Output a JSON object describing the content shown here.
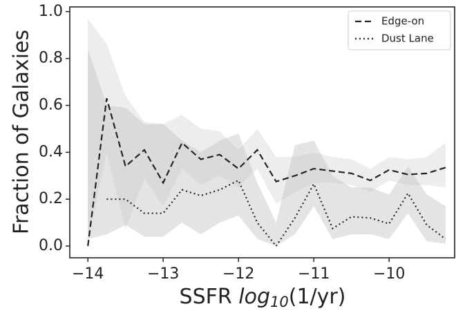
{
  "chart_data": {
    "type": "line",
    "xlabel": [
      "SSFR ",
      "log",
      "10",
      "(1/yr)"
    ],
    "ylabel": "Fraction of Galaxies",
    "x": [
      -14,
      -13.75,
      -13.5,
      -13.25,
      -13,
      -12.75,
      -12.5,
      -12.25,
      -12,
      -11.75,
      -11.5,
      -11.25,
      -11,
      -10.75,
      -10.5,
      -10.25,
      -10,
      -9.75,
      -9.5,
      -9.25
    ],
    "series": [
      {
        "name": "Edge-on",
        "color": "#222222",
        "linestyle": "dashed",
        "band_color": "#d8d8dc",
        "values": [
          0.0,
          0.63,
          0.34,
          0.41,
          0.27,
          0.44,
          0.37,
          0.39,
          0.33,
          0.41,
          0.275,
          0.3,
          0.33,
          0.32,
          0.31,
          0.28,
          0.325,
          0.305,
          0.31,
          0.335
        ],
        "upper": [
          0.97,
          0.86,
          0.64,
          0.53,
          0.52,
          0.56,
          0.5,
          0.49,
          0.41,
          0.5,
          0.38,
          0.38,
          0.4,
          0.38,
          0.37,
          0.33,
          0.38,
          0.37,
          0.38,
          0.44
        ],
        "lower": [
          0.02,
          0.4,
          0.07,
          0.29,
          0.17,
          0.33,
          0.26,
          0.3,
          0.25,
          0.33,
          0.18,
          0.23,
          0.27,
          0.27,
          0.26,
          0.23,
          0.28,
          0.26,
          0.26,
          0.25
        ]
      },
      {
        "name": "Dust Lane",
        "color": "#222222",
        "linestyle": "dotted",
        "band_color": "#c4c4c8",
        "values": [
          null,
          0.2,
          0.2,
          0.14,
          0.14,
          0.24,
          0.215,
          0.24,
          0.28,
          0.1,
          0.0,
          0.12,
          0.265,
          0.075,
          0.125,
          0.12,
          0.095,
          0.225,
          0.09,
          0.03
        ],
        "upper": [
          0.84,
          0.6,
          0.59,
          0.52,
          0.52,
          0.45,
          0.4,
          0.45,
          0.48,
          0.27,
          0.1,
          0.43,
          0.45,
          0.3,
          0.25,
          0.25,
          0.22,
          0.34,
          0.22,
          0.17
        ],
        "lower": [
          0.03,
          0.05,
          0.09,
          0.04,
          0.04,
          0.1,
          0.05,
          0.1,
          0.13,
          0.03,
          0.0,
          0.05,
          0.17,
          0.03,
          0.05,
          0.05,
          0.03,
          0.14,
          0.02,
          0.01
        ]
      }
    ],
    "xlim": [
      -14.24,
      -9.13
    ],
    "ylim": [
      -0.05,
      1.02
    ],
    "xticks": [
      {
        "value": -14,
        "label": "−14"
      },
      {
        "value": -13,
        "label": "−13"
      },
      {
        "value": -12,
        "label": "−12"
      },
      {
        "value": -11,
        "label": "−11"
      },
      {
        "value": -10,
        "label": "−10"
      }
    ],
    "yticks": [
      {
        "value": 0,
        "label": "0.0"
      },
      {
        "value": 0.2,
        "label": "0.2"
      },
      {
        "value": 0.4,
        "label": "0.4"
      },
      {
        "value": 0.6,
        "label": "0.6"
      },
      {
        "value": 0.8,
        "label": "0.8"
      },
      {
        "value": 1,
        "label": "1.0"
      }
    ],
    "legend": "upper right"
  }
}
